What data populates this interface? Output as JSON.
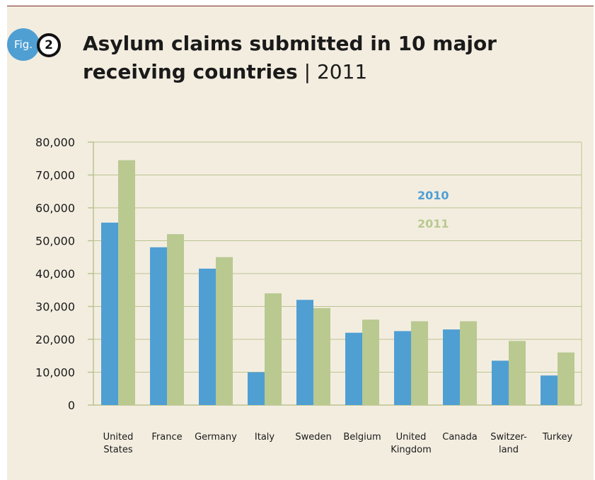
{
  "header": {
    "fig_label": "Fig.",
    "fig_number": "2",
    "title": "Asylum claims submitted in 10 major receiving countries",
    "separator": "|",
    "year": "2011"
  },
  "colors": {
    "series_2010": "#4f9fd3",
    "series_2011": "#b9c990",
    "grid": "#b9c48e",
    "text": "#1a1a1a",
    "background": "#f3ede0"
  },
  "chart_data": {
    "type": "bar",
    "title": "Asylum claims submitted in 10 major receiving countries | 2011",
    "categories": [
      [
        "United",
        "States"
      ],
      [
        "France"
      ],
      [
        "Germany"
      ],
      [
        "Italy"
      ],
      [
        "Sweden"
      ],
      [
        "Belgium"
      ],
      [
        "United",
        "Kingdom"
      ],
      [
        "Canada"
      ],
      [
        "Switzer-",
        "land"
      ],
      [
        "Turkey"
      ]
    ],
    "series": [
      {
        "name": "2010",
        "values": [
          55500,
          48000,
          41500,
          10000,
          32000,
          22000,
          22500,
          23000,
          13500,
          9000
        ]
      },
      {
        "name": "2011",
        "values": [
          74500,
          52000,
          45000,
          34000,
          29500,
          26000,
          25500,
          25500,
          19500,
          16000
        ]
      }
    ],
    "ylim": [
      0,
      80000
    ],
    "yticks": [
      "0",
      "10,000",
      "20,000",
      "30,000",
      "40,000",
      "50,000",
      "60,000",
      "70,000",
      "80,000"
    ],
    "grid": true,
    "legend": "inside, upper right"
  }
}
